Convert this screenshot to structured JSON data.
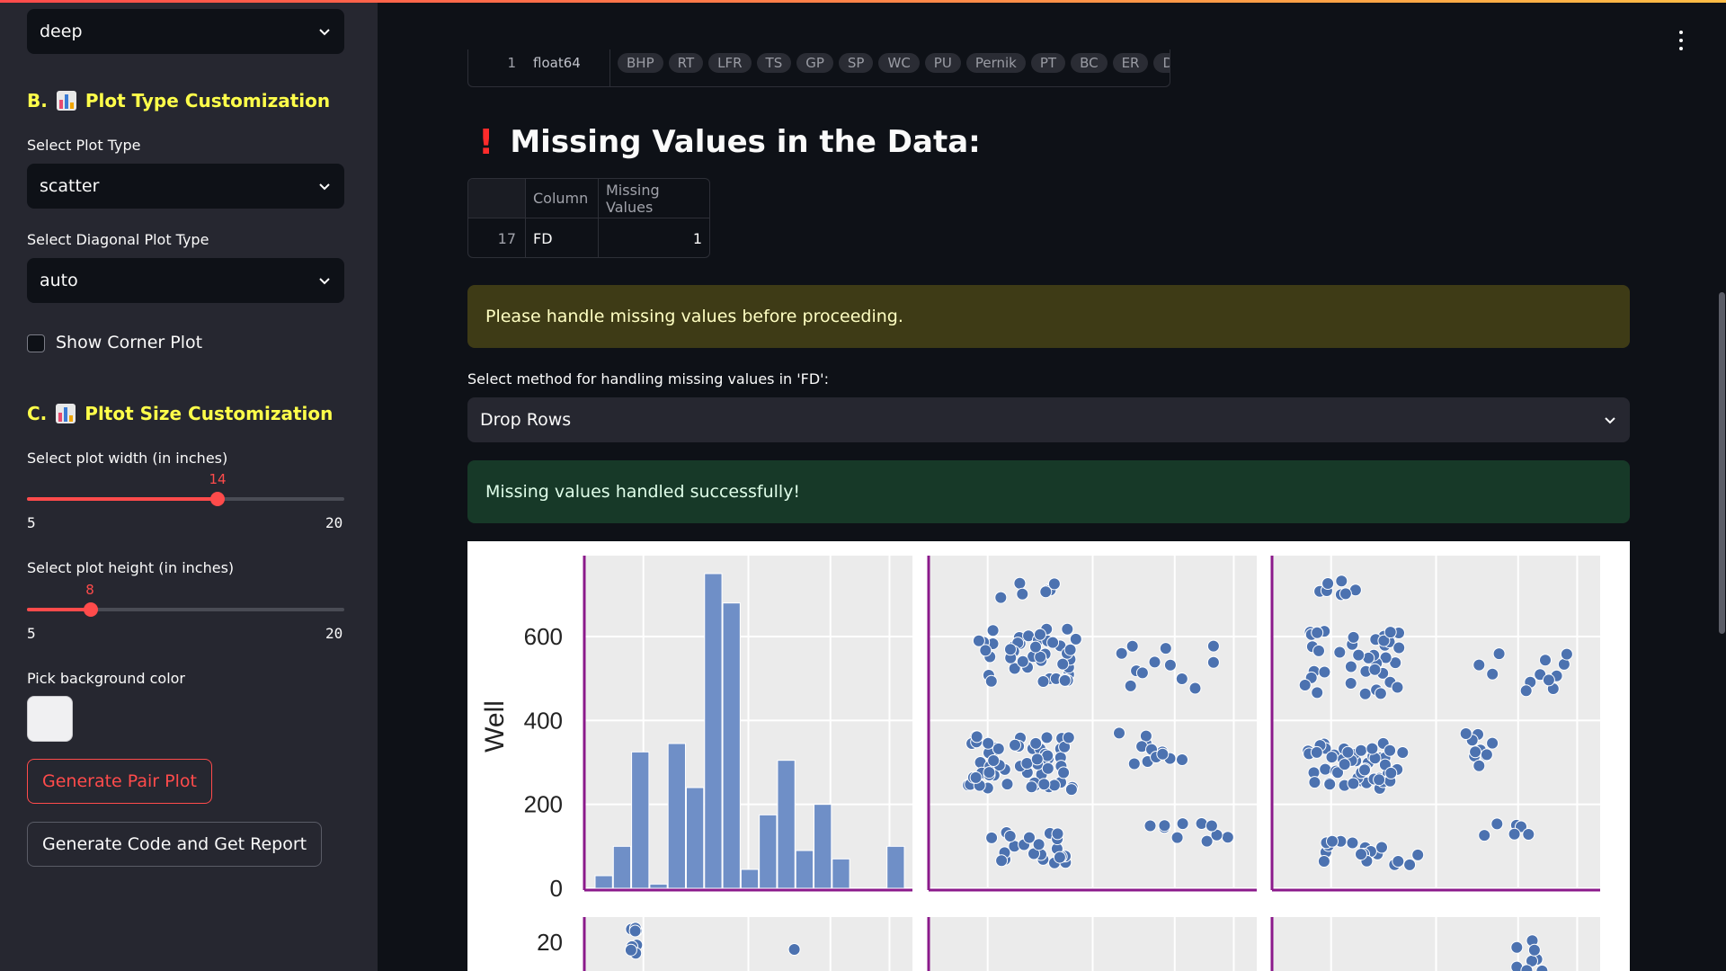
{
  "sidebar": {
    "palette_select": {
      "value": "deep"
    },
    "section_b": {
      "prefix": "B.",
      "title": "Plot Type Customization"
    },
    "plot_type": {
      "label": "Select Plot Type",
      "value": "scatter"
    },
    "diag_type": {
      "label": "Select Diagonal Plot Type",
      "value": "auto"
    },
    "corner": {
      "label": "Show Corner Plot",
      "checked": false
    },
    "section_c": {
      "prefix": "C.",
      "title": "Pltot Size Customization"
    },
    "width_slider": {
      "label": "Select plot width (in inches)",
      "value": "14",
      "min": "5",
      "max": "20",
      "fraction": 0.6
    },
    "height_slider": {
      "label": "Select plot height (in inches)",
      "value": "8",
      "min": "5",
      "max": "20",
      "fraction": 0.2
    },
    "bgcolor": {
      "label": "Pick background color",
      "color": "#f0f0f2"
    },
    "generate_button": "Generate Pair Plot",
    "report_button": "Generate Code and Get Report"
  },
  "main": {
    "top_table": {
      "index": "1",
      "value": "float64",
      "pills": [
        "BHP",
        "RT",
        "LFR",
        "TS",
        "GP",
        "SP",
        "WC",
        "PU",
        "Pernik",
        "PT",
        "BC",
        "ER",
        "DT"
      ]
    },
    "missing_title": "Missing Values in the Data:",
    "missing_table": {
      "headers": [
        "",
        "Column",
        "Missing Values"
      ],
      "rows": [
        {
          "index": "17",
          "column": "FD",
          "missing": "1"
        }
      ]
    },
    "warning": "Please handle missing values before proceeding.",
    "method_label": "Select method for handling missing values in 'FD':",
    "method_value": "Drop Rows",
    "success": "Missing values handled successfully!"
  },
  "colors": {
    "accent": "#ff4b4b",
    "heading": "#ffff4a",
    "marker": "#4c72b0",
    "spine": "#8b1a8b"
  },
  "chart_data": {
    "type": "scatter",
    "ylabel": "Well",
    "yticks": [
      "0",
      "200",
      "400",
      "600"
    ],
    "ylim": [
      0,
      750
    ],
    "hist_values": [
      30,
      100,
      325,
      10,
      345,
      240,
      750,
      680,
      45,
      175,
      305,
      90,
      200,
      70,
      0,
      0,
      100
    ],
    "row2_ytick": "20"
  }
}
